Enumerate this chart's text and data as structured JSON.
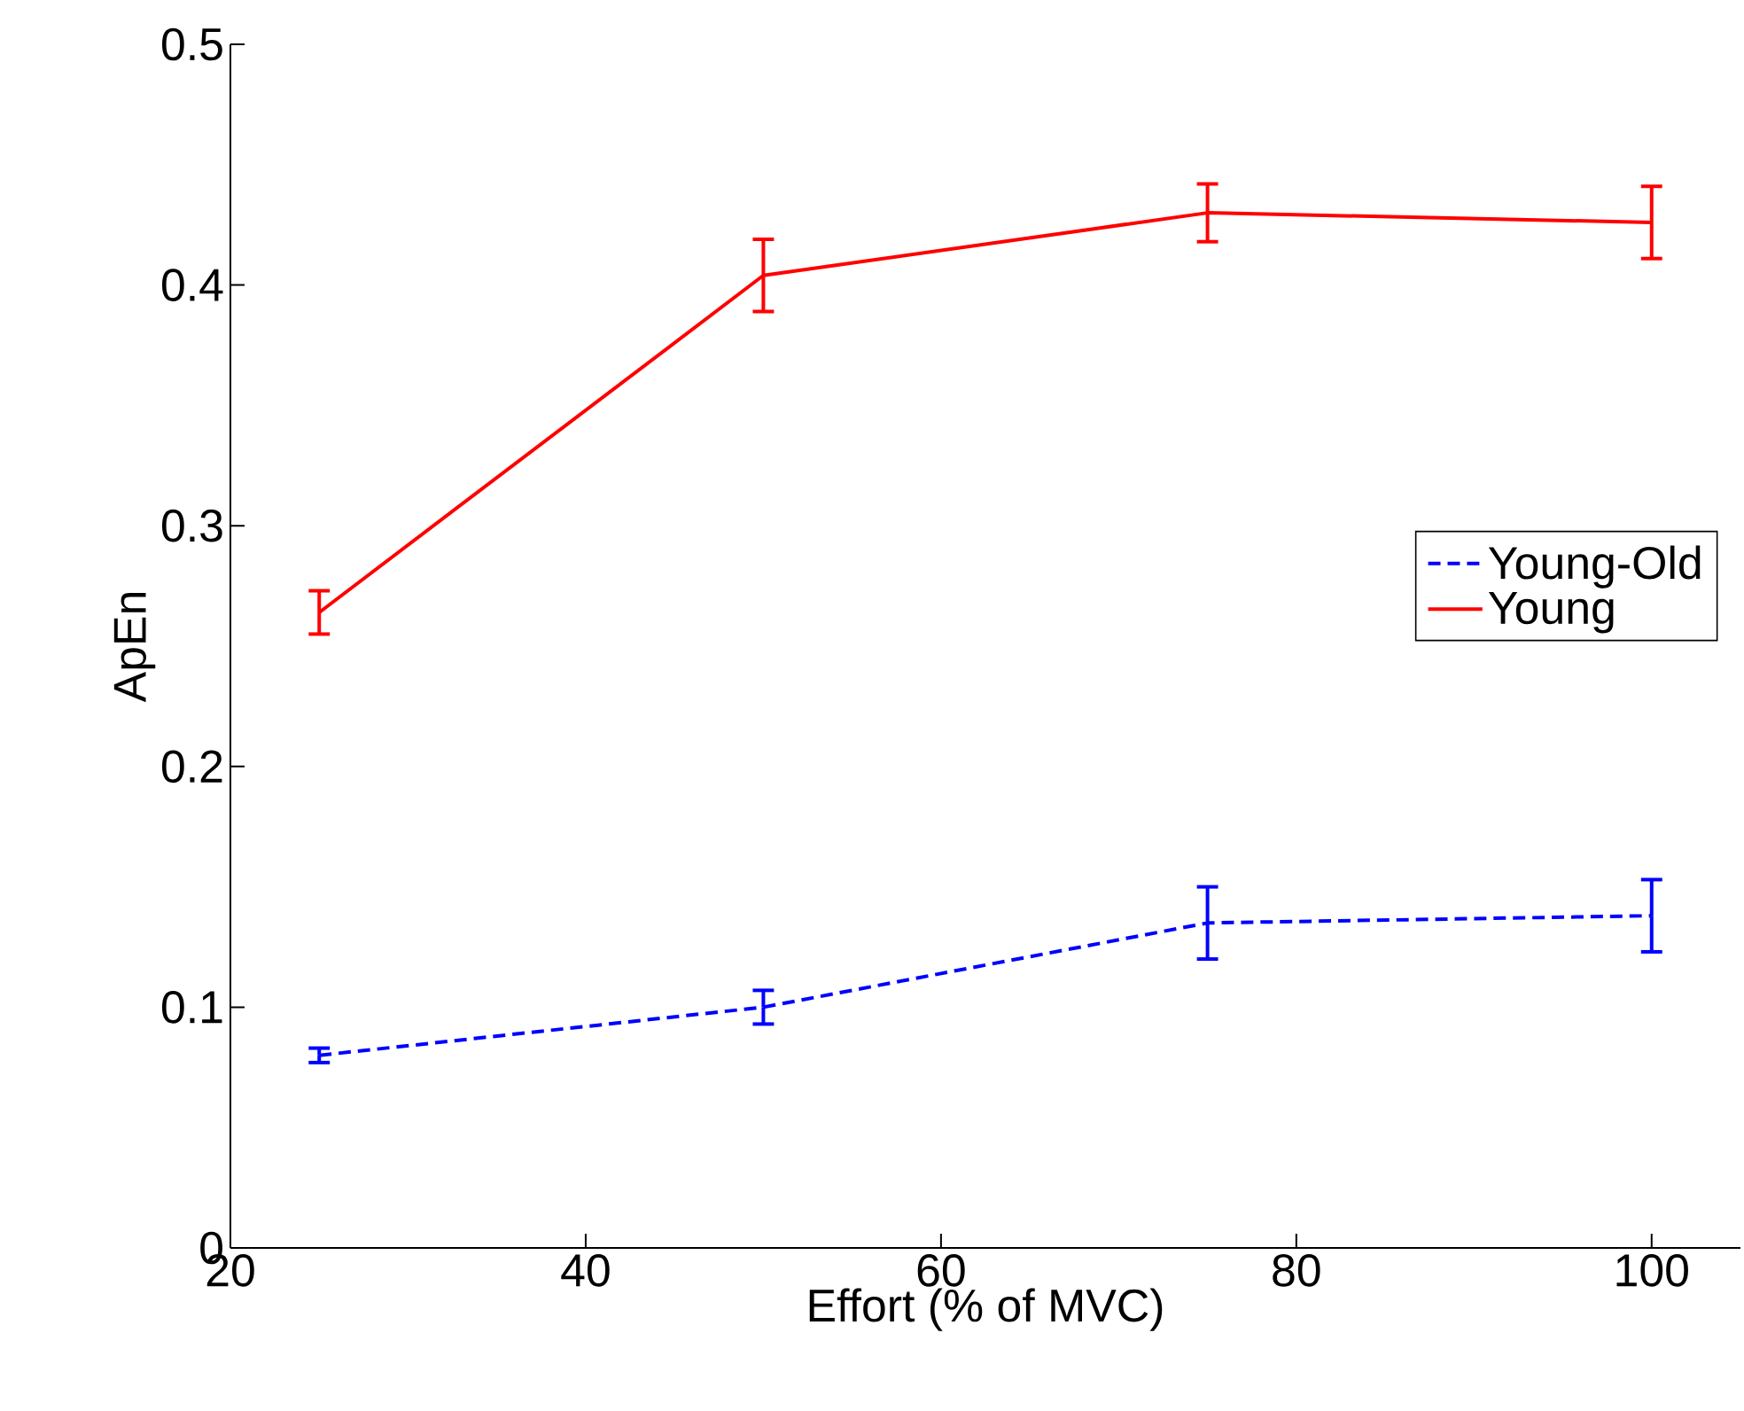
{
  "chart_data": {
    "type": "line",
    "xlabel": "Effort (% of MVC)",
    "ylabel": "ApEn",
    "x": [
      25,
      50,
      75,
      100
    ],
    "series": [
      {
        "name": "Young-Old",
        "color": "#0000ff",
        "line_style": "dashed",
        "values": [
          0.08,
          0.1,
          0.135,
          0.138
        ],
        "errors": [
          0.003,
          0.007,
          0.015,
          0.015
        ]
      },
      {
        "name": "Young",
        "color": "#ff0000",
        "line_style": "solid",
        "values": [
          0.264,
          0.404,
          0.43,
          0.426
        ],
        "errors": [
          0.009,
          0.015,
          0.012,
          0.015
        ]
      }
    ],
    "xlim": [
      20,
      105
    ],
    "ylim": [
      0,
      0.5
    ],
    "xticks": [
      20,
      40,
      60,
      80,
      100
    ],
    "yticks": [
      0,
      0.1,
      0.2,
      0.3,
      0.4,
      0.5
    ],
    "legend": "right",
    "grid": false,
    "marker": "none"
  }
}
